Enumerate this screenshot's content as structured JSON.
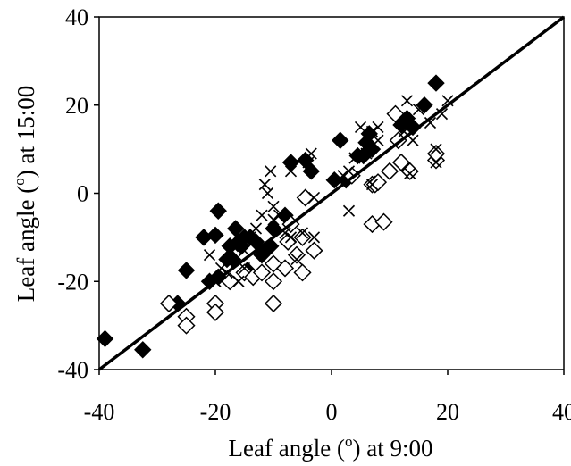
{
  "chart_data": {
    "type": "scatter",
    "title": "",
    "xlabel": {
      "pre": "Leaf angle (",
      "sup": "o",
      "post": ") at 9:00"
    },
    "ylabel": {
      "pre": "Leaf angle (",
      "sup": "o",
      "post": ") at 15:00"
    },
    "xlim": [
      -40,
      40
    ],
    "ylim": [
      -40,
      40
    ],
    "xticks": [
      "-40",
      "-20",
      "0",
      "20",
      "40"
    ],
    "yticks": [
      "-40",
      "-20",
      "0",
      "20",
      "40"
    ],
    "xtick_values": [
      -40,
      -20,
      0,
      20,
      40
    ],
    "ytick_values": [
      -40,
      -20,
      0,
      20,
      40
    ],
    "grid": false,
    "legend": "none",
    "reference_line": {
      "type": "1:1",
      "points": [
        [
          -40,
          -40
        ],
        [
          40,
          40
        ]
      ]
    },
    "series": [
      {
        "marker": "filled-diamond",
        "color": "#000000",
        "points": [
          [
            -39,
            -33
          ],
          [
            -32.5,
            -35.5
          ],
          [
            -26.5,
            -25
          ],
          [
            -25,
            -17.5
          ],
          [
            -22,
            -10
          ],
          [
            -21,
            -20
          ],
          [
            -20,
            -9.5
          ],
          [
            -19.5,
            -4
          ],
          [
            -19.5,
            -19
          ],
          [
            -18,
            -15
          ],
          [
            -17.5,
            -12
          ],
          [
            -17,
            -15
          ],
          [
            -16.5,
            -8
          ],
          [
            -16,
            -11
          ],
          [
            -15.5,
            -12
          ],
          [
            -15,
            -10
          ],
          [
            -14.5,
            -17.5
          ],
          [
            -14,
            -10
          ],
          [
            -13,
            -11
          ],
          [
            -12,
            -14
          ],
          [
            -11.5,
            -13
          ],
          [
            -10.5,
            -12
          ],
          [
            -10,
            -8
          ],
          [
            -8,
            -5
          ],
          [
            -7,
            7
          ],
          [
            -4.5,
            7.5
          ],
          [
            -3.5,
            5
          ],
          [
            0.5,
            3
          ],
          [
            1.5,
            12
          ],
          [
            2.5,
            3
          ],
          [
            4.5,
            8.5
          ],
          [
            5.5,
            8.5
          ],
          [
            6,
            11.5
          ],
          [
            6.5,
            13.5
          ],
          [
            7,
            10
          ],
          [
            12,
            15.5
          ],
          [
            13,
            17
          ],
          [
            14,
            15
          ],
          [
            16,
            20
          ],
          [
            18,
            25
          ]
        ]
      },
      {
        "marker": "open-diamond",
        "color": "#000000",
        "points": [
          [
            -28,
            -25
          ],
          [
            -25,
            -28
          ],
          [
            -25,
            -30
          ],
          [
            -20,
            -25
          ],
          [
            -20,
            -27
          ],
          [
            -17.5,
            -20
          ],
          [
            -15,
            -18
          ],
          [
            -13.5,
            -19
          ],
          [
            -12,
            -18
          ],
          [
            -10,
            -20
          ],
          [
            -10,
            -25
          ],
          [
            -10,
            -16
          ],
          [
            -8,
            -17
          ],
          [
            -7.5,
            -11
          ],
          [
            -7,
            -7
          ],
          [
            -6,
            -14
          ],
          [
            -5,
            -18
          ],
          [
            -5,
            -10
          ],
          [
            -4.5,
            -1
          ],
          [
            -3,
            -13
          ],
          [
            3.5,
            4
          ],
          [
            7,
            2
          ],
          [
            7,
            -7
          ],
          [
            7.5,
            2
          ],
          [
            8,
            2.5
          ],
          [
            9,
            -6.5
          ],
          [
            10,
            5
          ],
          [
            11,
            18
          ],
          [
            11.5,
            12
          ],
          [
            12,
            7
          ],
          [
            13.5,
            5
          ],
          [
            18,
            7.5
          ],
          [
            18,
            9
          ]
        ]
      },
      {
        "marker": "cross",
        "color": "#000000",
        "points": [
          [
            -21,
            -14
          ],
          [
            -20,
            -20
          ],
          [
            -19,
            -17
          ],
          [
            -18,
            -18
          ],
          [
            -17,
            -12
          ],
          [
            -16,
            -20
          ],
          [
            -15,
            -17
          ],
          [
            -15,
            -13
          ],
          [
            -14,
            -10
          ],
          [
            -13,
            -8
          ],
          [
            -12,
            -5
          ],
          [
            -11.5,
            2
          ],
          [
            -11,
            0
          ],
          [
            -10.5,
            5
          ],
          [
            -10,
            -3
          ],
          [
            -10,
            -6
          ],
          [
            -9,
            -5
          ],
          [
            -8,
            -9
          ],
          [
            -7,
            -10
          ],
          [
            -7,
            5
          ],
          [
            -6,
            -15
          ],
          [
            -5,
            -9
          ],
          [
            -4,
            7
          ],
          [
            -3.5,
            9
          ],
          [
            -3,
            -10
          ],
          [
            -3,
            -1
          ],
          [
            2,
            4
          ],
          [
            3,
            5
          ],
          [
            3,
            -4
          ],
          [
            4,
            8
          ],
          [
            5,
            15
          ],
          [
            6,
            9
          ],
          [
            7,
            14
          ],
          [
            7,
            2
          ],
          [
            8,
            12
          ],
          [
            8,
            15
          ],
          [
            12.5,
            14
          ],
          [
            13,
            21
          ],
          [
            13.5,
            4.5
          ],
          [
            14,
            12
          ],
          [
            15,
            19
          ],
          [
            17,
            16
          ],
          [
            18,
            7
          ],
          [
            18,
            10
          ],
          [
            19,
            18
          ],
          [
            20,
            21
          ]
        ]
      }
    ]
  }
}
